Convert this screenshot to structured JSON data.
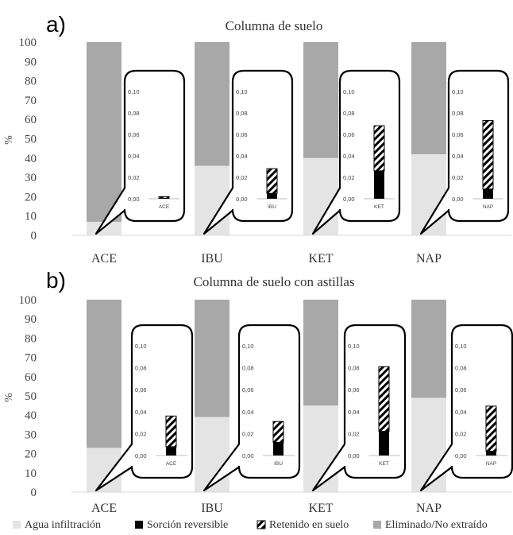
{
  "colors": {
    "agua": "#e4e4e4",
    "sorcion": "#000000",
    "retenido_stripe": "#000000",
    "eliminado": "#a8a8a8",
    "axis": "#404040"
  },
  "legend": {
    "position": "bottom",
    "items": [
      {
        "label": "Agua infiltración",
        "pattern": "solid-light"
      },
      {
        "label": "Sorción reversible",
        "pattern": "solid-black"
      },
      {
        "label": "Retenido en suelo",
        "pattern": "hatch"
      },
      {
        "label": "Eliminado/No extraído",
        "pattern": "solid-gray"
      }
    ]
  },
  "chart_data": [
    {
      "type": "bar",
      "stacked": true,
      "panel_label": "a)",
      "title": "Columna de suelo",
      "ylabel": "%",
      "ylim": [
        0,
        100
      ],
      "yticks": [
        0,
        10,
        20,
        30,
        40,
        50,
        60,
        70,
        80,
        90,
        100
      ],
      "categories": [
        "ACE",
        "IBU",
        "KET",
        "NAP"
      ],
      "series": [
        {
          "name": "Agua infiltración",
          "values": [
            7,
            36,
            40,
            42
          ]
        },
        {
          "name": "Eliminado/No extraído",
          "values": [
            93,
            64,
            60,
            58
          ]
        }
      ],
      "insets": {
        "ylim": [
          0,
          0.1
        ],
        "yticks": [
          "0,00",
          "0,02",
          "0,04",
          "0,06",
          "0,08",
          "0,10"
        ],
        "tick_values": [
          0,
          0.02,
          0.04,
          0.06,
          0.08,
          0.1
        ],
        "items": [
          {
            "category": "ACE",
            "sorcion": 0.0005,
            "retenido": 0.0015
          },
          {
            "category": "IBU",
            "sorcion": 0.005,
            "retenido": 0.023
          },
          {
            "category": "KET",
            "sorcion": 0.026,
            "retenido": 0.042
          },
          {
            "category": "NAP",
            "sorcion": 0.009,
            "retenido": 0.064
          }
        ]
      }
    },
    {
      "type": "bar",
      "stacked": true,
      "panel_label": "b)",
      "title": "Columna de suelo con astillas",
      "ylabel": "%",
      "ylim": [
        0,
        100
      ],
      "yticks": [
        0,
        10,
        20,
        30,
        40,
        50,
        60,
        70,
        80,
        90,
        100
      ],
      "categories": [
        "ACE",
        "IBU",
        "KET",
        "NAP"
      ],
      "series": [
        {
          "name": "Agua infiltración",
          "values": [
            23,
            39,
            45,
            49
          ]
        },
        {
          "name": "Eliminado/No extraído",
          "values": [
            77,
            61,
            55,
            51
          ]
        }
      ],
      "insets": {
        "ylim": [
          0,
          0.1
        ],
        "yticks": [
          "0,00",
          "0,02",
          "0,04",
          "0,06",
          "0,08",
          "0,10"
        ],
        "tick_values": [
          0,
          0.02,
          0.04,
          0.06,
          0.08,
          0.1
        ],
        "items": [
          {
            "category": "ACE",
            "sorcion": 0.008,
            "retenido": 0.028
          },
          {
            "category": "IBU",
            "sorcion": 0.012,
            "retenido": 0.019
          },
          {
            "category": "KET",
            "sorcion": 0.022,
            "retenido": 0.059
          },
          {
            "category": "NAP",
            "sorcion": 0.004,
            "retenido": 0.041
          }
        ]
      }
    }
  ]
}
